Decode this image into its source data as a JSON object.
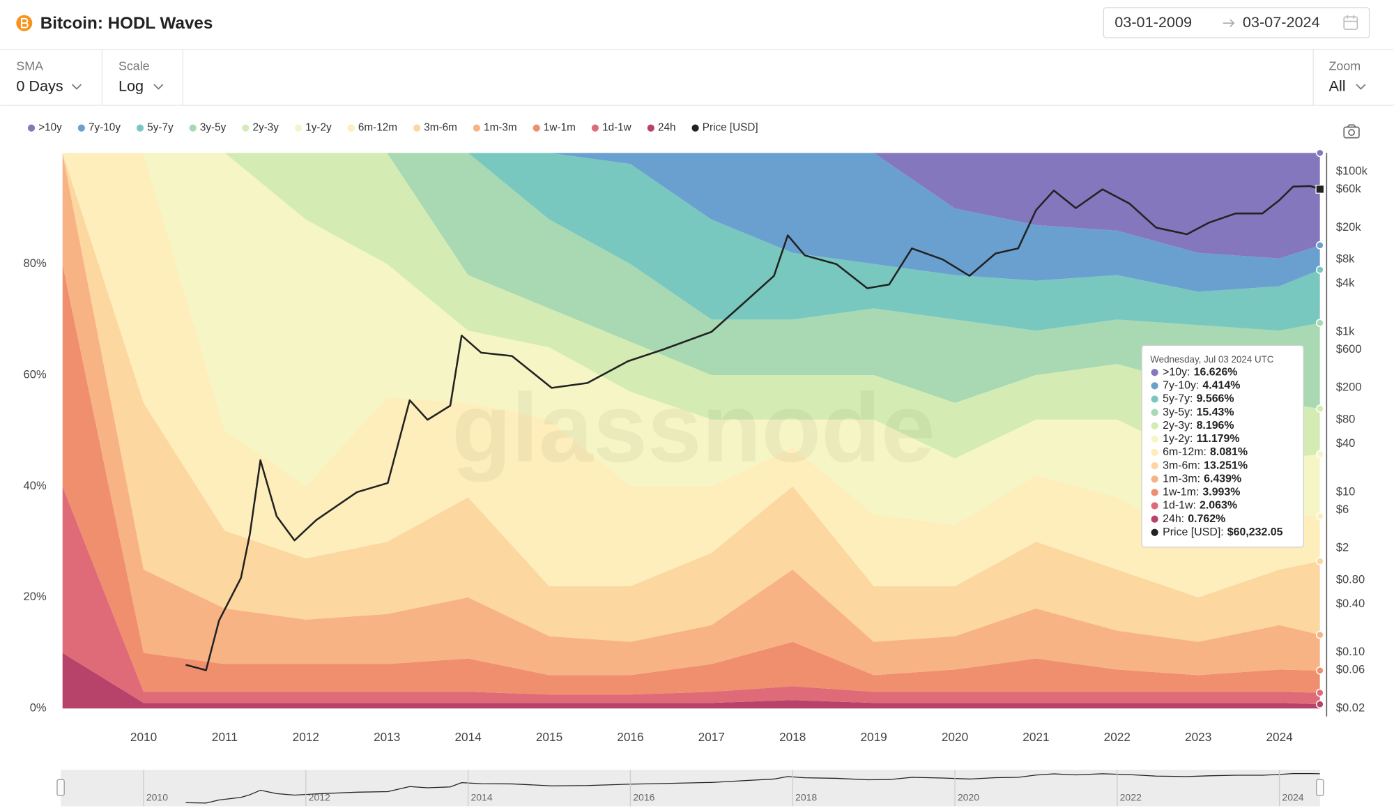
{
  "header": {
    "title": "Bitcoin: HODL Waves",
    "date_from": "03-01-2009",
    "date_to": "03-07-2024"
  },
  "controls": [
    {
      "label": "SMA",
      "value": "0 Days"
    },
    {
      "label": "Scale",
      "value": "Log"
    },
    {
      "label": "Zoom",
      "value": "All"
    }
  ],
  "watermark": "glassnode",
  "chart_data": {
    "type": "area",
    "stacked": true,
    "x": [
      2009,
      2010,
      2011,
      2012,
      2013,
      2014,
      2015,
      2016,
      2017,
      2018,
      2019,
      2020,
      2021,
      2022,
      2023,
      2024,
      2024.5
    ],
    "xlim": [
      2009.0,
      2024.5
    ],
    "xticks": [
      2010,
      2011,
      2012,
      2013,
      2014,
      2015,
      2016,
      2017,
      2018,
      2019,
      2020,
      2021,
      2022,
      2023,
      2024
    ],
    "ylim": [
      0,
      100
    ],
    "yticks": [
      {
        "value": 0,
        "label": "0%"
      },
      {
        "value": 20,
        "label": "20%"
      },
      {
        "value": 40,
        "label": "40%"
      },
      {
        "value": 60,
        "label": "60%"
      },
      {
        "value": 80,
        "label": "80%"
      }
    ],
    "y2_log": true,
    "y2lim": [
      0.02,
      171000
    ],
    "y2ticks": [
      {
        "value": 100000,
        "label": "$100k"
      },
      {
        "value": 60000,
        "label": "$60k"
      },
      {
        "value": 20000,
        "label": "$20k"
      },
      {
        "value": 8000,
        "label": "$8k"
      },
      {
        "value": 4000,
        "label": "$4k"
      },
      {
        "value": 1000,
        "label": "$1k"
      },
      {
        "value": 600,
        "label": "$600"
      },
      {
        "value": 200,
        "label": "$200"
      },
      {
        "value": 80,
        "label": "$80"
      },
      {
        "value": 40,
        "label": "$40"
      },
      {
        "value": 10,
        "label": "$10"
      },
      {
        "value": 6,
        "label": "$6"
      },
      {
        "value": 2,
        "label": "$2"
      },
      {
        "value": 0.8,
        "label": "$0.80"
      },
      {
        "value": 0.4,
        "label": "$0.40"
      },
      {
        "value": 0.1,
        "label": "$0.10"
      },
      {
        "value": 0.06,
        "label": "$0.06"
      },
      {
        "value": 0.02,
        "label": "$0.02"
      }
    ],
    "grid": false,
    "series": [
      {
        "name": ">10y",
        "color": "#8577bd",
        "values": [
          0,
          0,
          0,
          0,
          0,
          0,
          0,
          0,
          0,
          0,
          0,
          10,
          13,
          14,
          18,
          19,
          16.626
        ]
      },
      {
        "name": "7y-10y",
        "color": "#6aa0d0",
        "values": [
          0,
          0,
          0,
          0,
          0,
          0,
          0,
          2,
          12,
          18,
          20,
          12,
          10,
          8,
          7,
          5,
          4.414
        ]
      },
      {
        "name": "5y-7y",
        "color": "#79c8bf",
        "values": [
          0,
          0,
          0,
          0,
          0,
          0,
          12,
          18,
          18,
          12,
          8,
          8,
          9,
          8,
          6,
          8,
          9.566
        ]
      },
      {
        "name": "3y-5y",
        "color": "#a8d9b2",
        "values": [
          0,
          0,
          0,
          0,
          0,
          22,
          16,
          14,
          10,
          10,
          12,
          15,
          8,
          8,
          11,
          13,
          15.43
        ]
      },
      {
        "name": "2y-3y",
        "color": "#d4ecb4",
        "values": [
          0,
          0,
          0,
          12,
          20,
          10,
          7,
          9,
          8,
          8,
          8,
          10,
          8,
          10,
          13,
          10,
          8.196
        ]
      },
      {
        "name": "1y-2y",
        "color": "#f5f5c6",
        "values": [
          0,
          0,
          50,
          48,
          24,
          13,
          13,
          17,
          12,
          5,
          17,
          12,
          10,
          14,
          15,
          10,
          11.179
        ]
      },
      {
        "name": "6m-12m",
        "color": "#fdeebb",
        "values": [
          0,
          45,
          18,
          13,
          26,
          17,
          30,
          18,
          12,
          7,
          13,
          11,
          12,
          13,
          10,
          10,
          8.081
        ]
      },
      {
        "name": "3m-6m",
        "color": "#fcd7a0",
        "values": [
          0,
          30,
          14,
          11,
          13,
          18,
          9,
          10,
          13,
          15,
          10,
          9,
          12,
          11,
          8,
          10,
          13.251
        ]
      },
      {
        "name": "1m-3m",
        "color": "#f8b385",
        "values": [
          20,
          15,
          10,
          8,
          9,
          11,
          7,
          6,
          7,
          13,
          6,
          6,
          9,
          7,
          6,
          8,
          6.439
        ]
      },
      {
        "name": "1w-1m",
        "color": "#f08f6e",
        "values": [
          40,
          7,
          5,
          5,
          5,
          6,
          3.5,
          3.5,
          5,
          8,
          3,
          4,
          6,
          4,
          3,
          4,
          3.993
        ]
      },
      {
        "name": "1d-1w",
        "color": "#df6b78",
        "values": [
          30,
          2,
          2,
          2,
          2,
          2,
          1.5,
          1.5,
          2,
          2.5,
          2,
          2,
          2,
          2,
          2,
          2,
          2.063
        ]
      },
      {
        "name": "24h",
        "color": "#b8436a",
        "values": [
          10,
          1,
          1,
          1,
          1,
          1,
          1,
          1,
          1,
          1.5,
          1,
          1,
          1,
          1,
          1,
          1,
          0.762
        ]
      },
      {
        "name": "Price [USD]",
        "color": "#222222",
        "type": "line",
        "axis": "y2",
        "x": [
          2010.52,
          2010.77,
          2010.93,
          2011.2,
          2011.31,
          2011.44,
          2011.64,
          2011.86,
          2012.13,
          2012.63,
          2013.01,
          2013.28,
          2013.5,
          2013.78,
          2013.92,
          2014.16,
          2014.54,
          2015.03,
          2015.47,
          2015.97,
          2016.4,
          2017.0,
          2017.44,
          2017.77,
          2017.94,
          2018.15,
          2018.54,
          2018.92,
          2019.19,
          2019.47,
          2019.85,
          2020.18,
          2020.5,
          2020.78,
          2021.0,
          2021.22,
          2021.49,
          2021.82,
          2022.15,
          2022.48,
          2022.86,
          2023.13,
          2023.46,
          2023.79,
          2024.0,
          2024.17,
          2024.38,
          2024.5
        ],
        "values": [
          0.07,
          0.06,
          0.25,
          0.85,
          3,
          25,
          5,
          2.5,
          4.5,
          10,
          13,
          140,
          80,
          120,
          900,
          550,
          500,
          200,
          230,
          430,
          600,
          1000,
          2500,
          5000,
          16000,
          9000,
          7000,
          3500,
          3900,
          11000,
          8000,
          5000,
          9500,
          11000,
          33000,
          58000,
          35000,
          60000,
          40000,
          20000,
          16500,
          23000,
          30000,
          30000,
          44000,
          65000,
          66000,
          60232.05
        ]
      }
    ],
    "tooltip": {
      "date": "Wednesday, Jul 03 2024 UTC",
      "items": [
        {
          "name": ">10y:",
          "value": "16.626%"
        },
        {
          "name": "7y-10y:",
          "value": "4.414%"
        },
        {
          "name": "5y-7y:",
          "value": "9.566%"
        },
        {
          "name": "3y-5y:",
          "value": "15.43%"
        },
        {
          "name": "2y-3y:",
          "value": "8.196%"
        },
        {
          "name": "1y-2y:",
          "value": "11.179%"
        },
        {
          "name": "6m-12m:",
          "value": "8.081%"
        },
        {
          "name": "3m-6m:",
          "value": "13.251%"
        },
        {
          "name": "1m-3m:",
          "value": "6.439%"
        },
        {
          "name": "1w-1m:",
          "value": "3.993%"
        },
        {
          "name": "1d-1w:",
          "value": "2.063%"
        },
        {
          "name": "24h:",
          "value": "0.762%"
        },
        {
          "name": "Price [USD]:",
          "value": "$60,232.05"
        }
      ]
    }
  },
  "navigator": {
    "xticks": [
      2010,
      2012,
      2014,
      2016,
      2018,
      2020,
      2022,
      2024
    ]
  }
}
